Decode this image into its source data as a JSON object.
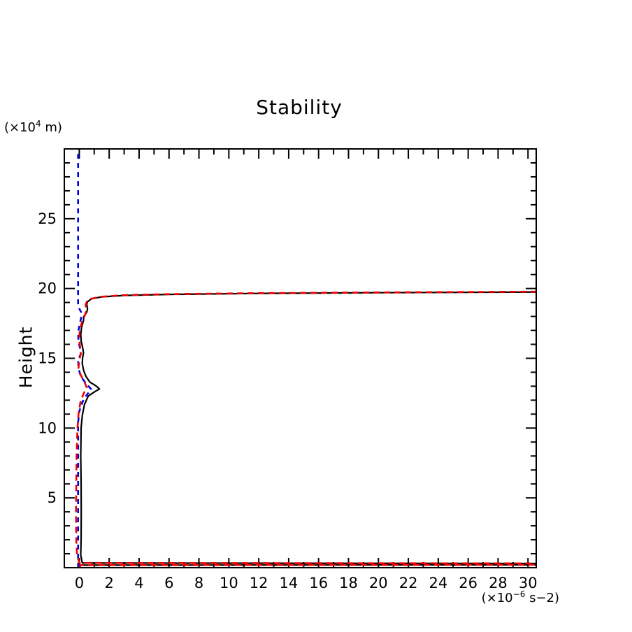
{
  "chart_data": {
    "type": "line",
    "title": "Stability",
    "ylabel": "Height",
    "y_unit": {
      "prefix": "(×10",
      "sup": "4",
      "suffix": " m)"
    },
    "x_unit": {
      "prefix": "(×10",
      "sup": "−6",
      "suffix": " s−2)"
    },
    "xlim": [
      -1.0,
      30.55
    ],
    "ylim": [
      0,
      30
    ],
    "grid": false,
    "legend": null,
    "x_ticks": {
      "min": 0,
      "max": 30,
      "minor_step": 1,
      "major_every": 2
    },
    "y_ticks": {
      "min": 1,
      "max": 29,
      "minor_step": 1,
      "major_every": 5
    },
    "x_tick_labels": [
      0,
      2,
      4,
      6,
      8,
      10,
      12,
      14,
      16,
      18,
      20,
      22,
      24,
      26,
      28,
      30
    ],
    "y_tick_labels": [
      5,
      10,
      15,
      20,
      25
    ],
    "series": [
      {
        "name": "reference-profile-blue-dashed",
        "color": "#0000e8",
        "style": "dashed",
        "dash": [
          7,
          6
        ],
        "width": 2.6,
        "points": [
          [
            -0.08,
            0
          ],
          [
            -0.08,
            10.4
          ],
          [
            0.0,
            11.2
          ],
          [
            0.3,
            12.1
          ],
          [
            0.8,
            12.78
          ],
          [
            0.45,
            13.2
          ],
          [
            0.1,
            13.7
          ],
          [
            -0.05,
            14.3
          ],
          [
            -0.08,
            14.9
          ],
          [
            0.1,
            15.3
          ],
          [
            0.05,
            15.7
          ],
          [
            -0.05,
            16.2
          ],
          [
            -0.08,
            16.8
          ],
          [
            0.0,
            17.3
          ],
          [
            0.12,
            17.9
          ],
          [
            0.12,
            18.3
          ],
          [
            -0.02,
            18.6
          ],
          [
            -0.08,
            18.9
          ],
          [
            -0.08,
            30
          ]
        ]
      },
      {
        "name": "stability-profile-black-solid",
        "color": "#000000",
        "style": "solid",
        "dash": null,
        "width": 2.2,
        "points": [
          [
            0.05,
            0
          ],
          [
            0.05,
            0.18
          ],
          [
            35,
            0.21
          ],
          [
            35,
            0.3
          ],
          [
            0.2,
            0.33
          ],
          [
            0.1,
            0.9
          ],
          [
            0.12,
            2
          ],
          [
            0.13,
            4
          ],
          [
            0.12,
            6
          ],
          [
            0.1,
            8
          ],
          [
            0.12,
            10
          ],
          [
            0.2,
            10.9
          ],
          [
            0.35,
            11.7
          ],
          [
            0.6,
            12.3
          ],
          [
            1.1,
            12.65
          ],
          [
            1.35,
            12.8
          ],
          [
            1.15,
            13.0
          ],
          [
            0.7,
            13.3
          ],
          [
            0.45,
            13.7
          ],
          [
            0.3,
            14.1
          ],
          [
            0.2,
            14.6
          ],
          [
            0.22,
            15.0
          ],
          [
            0.28,
            15.4
          ],
          [
            0.22,
            15.8
          ],
          [
            0.13,
            16.2
          ],
          [
            0.1,
            16.7
          ],
          [
            0.15,
            17.2
          ],
          [
            0.28,
            17.7
          ],
          [
            0.3,
            18.0
          ],
          [
            0.5,
            18.3
          ],
          [
            0.55,
            18.55
          ],
          [
            0.5,
            18.85
          ],
          [
            0.55,
            19.05
          ],
          [
            0.8,
            19.25
          ],
          [
            1.5,
            19.4
          ],
          [
            3.0,
            19.5
          ],
          [
            6.0,
            19.58
          ],
          [
            12,
            19.65
          ],
          [
            20,
            19.7
          ],
          [
            30.8,
            19.75
          ]
        ]
      },
      {
        "name": "stability-profile-red-dashed",
        "color": "#ee0000",
        "style": "dashed",
        "dash": [
          9,
          6
        ],
        "width": 2.6,
        "points": [
          [
            0.05,
            0
          ],
          [
            0.05,
            0.18
          ],
          [
            35,
            0.21
          ],
          [
            35,
            0.3
          ],
          [
            0.0,
            0.34
          ],
          [
            -0.15,
            0.9
          ],
          [
            -0.2,
            2
          ],
          [
            -0.22,
            4
          ],
          [
            -0.2,
            6
          ],
          [
            -0.18,
            8
          ],
          [
            -0.12,
            10
          ],
          [
            -0.05,
            11
          ],
          [
            0.1,
            12.0
          ],
          [
            0.35,
            12.6
          ],
          [
            0.5,
            12.9
          ],
          [
            0.35,
            13.3
          ],
          [
            0.1,
            13.8
          ],
          [
            -0.05,
            14.3
          ],
          [
            0.0,
            14.9
          ],
          [
            0.1,
            15.3
          ],
          [
            0.08,
            15.7
          ],
          [
            0.0,
            16.2
          ],
          [
            0.02,
            16.8
          ],
          [
            0.1,
            17.3
          ],
          [
            0.25,
            17.8
          ],
          [
            0.4,
            18.15
          ],
          [
            0.48,
            18.5
          ],
          [
            0.42,
            18.8
          ],
          [
            0.5,
            19.05
          ],
          [
            0.75,
            19.25
          ],
          [
            1.4,
            19.4
          ],
          [
            2.8,
            19.52
          ],
          [
            6.0,
            19.6
          ],
          [
            12,
            19.67
          ],
          [
            20,
            19.72
          ],
          [
            30.8,
            19.78
          ]
        ]
      }
    ]
  }
}
